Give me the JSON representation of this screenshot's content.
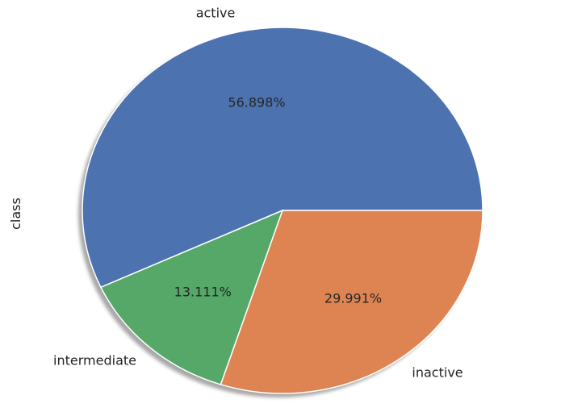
{
  "chart_data": {
    "type": "pie",
    "ylabel": "class",
    "slices": [
      {
        "label": "active",
        "value": 56.898,
        "pct_label": "56.898%",
        "color": "#4c72b0"
      },
      {
        "label": "intermediate",
        "value": 13.111,
        "pct_label": "13.111%",
        "color": "#55a868"
      },
      {
        "label": "inactive",
        "value": 29.991,
        "pct_label": "29.991%",
        "color": "#dd8452"
      }
    ],
    "start_angle_deg": 0,
    "direction": "counterclockwise",
    "shadow": true
  }
}
